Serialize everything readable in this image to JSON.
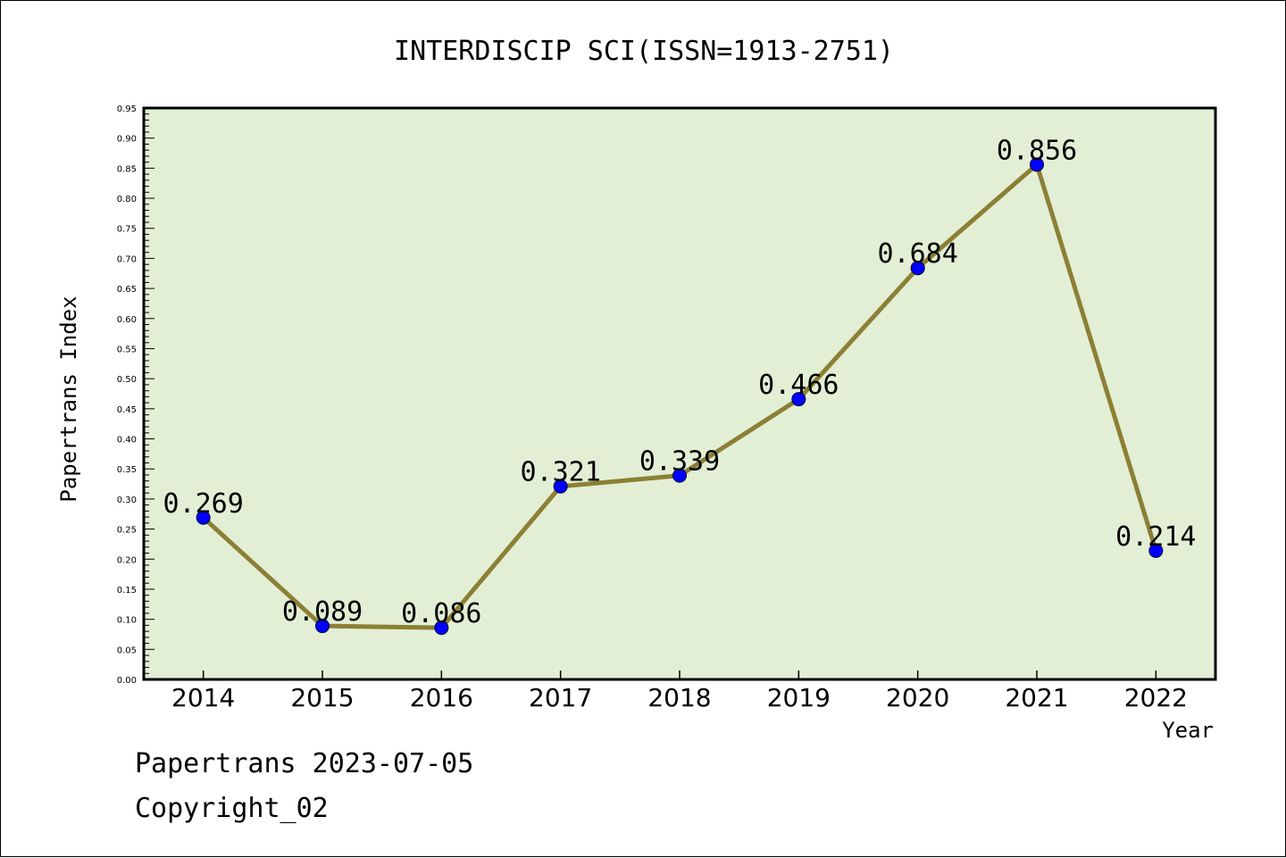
{
  "chart_data": {
    "type": "line",
    "title": "INTERDISCIP SCI(ISSN=1913-2751)",
    "xlabel": "Year",
    "ylabel": "Papertrans Index",
    "categories": [
      "2014",
      "2015",
      "2016",
      "2017",
      "2018",
      "2019",
      "2020",
      "2021",
      "2022"
    ],
    "values": [
      0.269,
      0.089,
      0.086,
      0.321,
      0.339,
      0.466,
      0.684,
      0.856,
      0.214
    ],
    "data_labels": [
      "0.269",
      "0.089",
      "0.086",
      "0.321",
      "0.339",
      "0.466",
      "0.684",
      "0.856",
      "0.214"
    ],
    "ylim": [
      0,
      0.95
    ],
    "yticks": [
      "0.00",
      "0.05",
      "0.10",
      "0.15",
      "0.20",
      "0.25",
      "0.30",
      "0.35",
      "0.40",
      "0.45",
      "0.50",
      "0.55",
      "0.60",
      "0.65",
      "0.70",
      "0.75",
      "0.80",
      "0.85",
      "0.90",
      "0.95"
    ],
    "grid": false,
    "colors": {
      "plot_background": "#e2efd5",
      "line": "#8c7f35",
      "marker": "#0000ff"
    }
  },
  "footer": {
    "line1": "Papertrans 2023-07-05",
    "line2": "Copyright_02"
  }
}
